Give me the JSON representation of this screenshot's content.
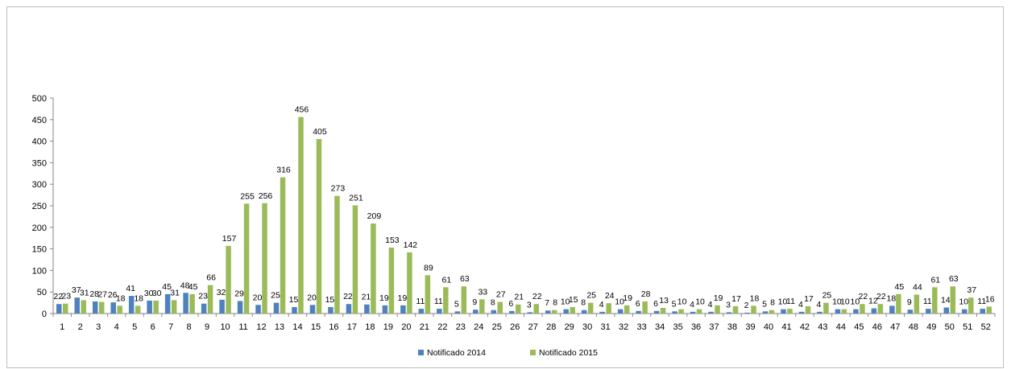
{
  "chart_data": {
    "type": "bar",
    "title": "",
    "xlabel": "",
    "ylabel": "",
    "ylim": [
      0,
      500
    ],
    "y_ticks": [
      0,
      50,
      100,
      150,
      200,
      250,
      300,
      350,
      400,
      450,
      500
    ],
    "grid": false,
    "legend_position": "bottom",
    "categories": [
      "1",
      "2",
      "3",
      "4",
      "5",
      "6",
      "7",
      "8",
      "9",
      "10",
      "11",
      "12",
      "13",
      "14",
      "15",
      "16",
      "17",
      "18",
      "19",
      "20",
      "21",
      "22",
      "23",
      "24",
      "25",
      "26",
      "27",
      "28",
      "29",
      "30",
      "31",
      "32",
      "33",
      "34",
      "35",
      "36",
      "37",
      "38",
      "39",
      "40",
      "41",
      "42",
      "43",
      "44",
      "45",
      "46",
      "47",
      "48",
      "49",
      "50",
      "51",
      "52"
    ],
    "series": [
      {
        "name": "Notificado 2014",
        "color": "#4f81bd",
        "values": [
          22,
          37,
          28,
          26,
          41,
          30,
          45,
          48,
          23,
          32,
          29,
          20,
          25,
          15,
          20,
          15,
          22,
          21,
          19,
          19,
          11,
          11,
          5,
          9,
          8,
          6,
          3,
          7,
          10,
          8,
          4,
          10,
          6,
          6,
          5,
          4,
          4,
          3,
          2,
          5,
          10,
          4,
          4,
          10,
          10,
          12,
          18,
          9,
          11,
          14,
          10,
          11
        ]
      },
      {
        "name": "Notificado 2015",
        "color": "#9bbb59",
        "values": [
          23,
          31,
          27,
          18,
          18,
          30,
          31,
          45,
          66,
          157,
          255,
          256,
          316,
          456,
          405,
          273,
          251,
          209,
          153,
          142,
          89,
          61,
          63,
          33,
          27,
          21,
          22,
          8,
          15,
          25,
          24,
          19,
          28,
          13,
          10,
          10,
          19,
          17,
          18,
          8,
          11,
          17,
          25,
          10,
          22,
          22,
          45,
          44,
          61,
          63,
          37,
          16
        ]
      }
    ]
  }
}
